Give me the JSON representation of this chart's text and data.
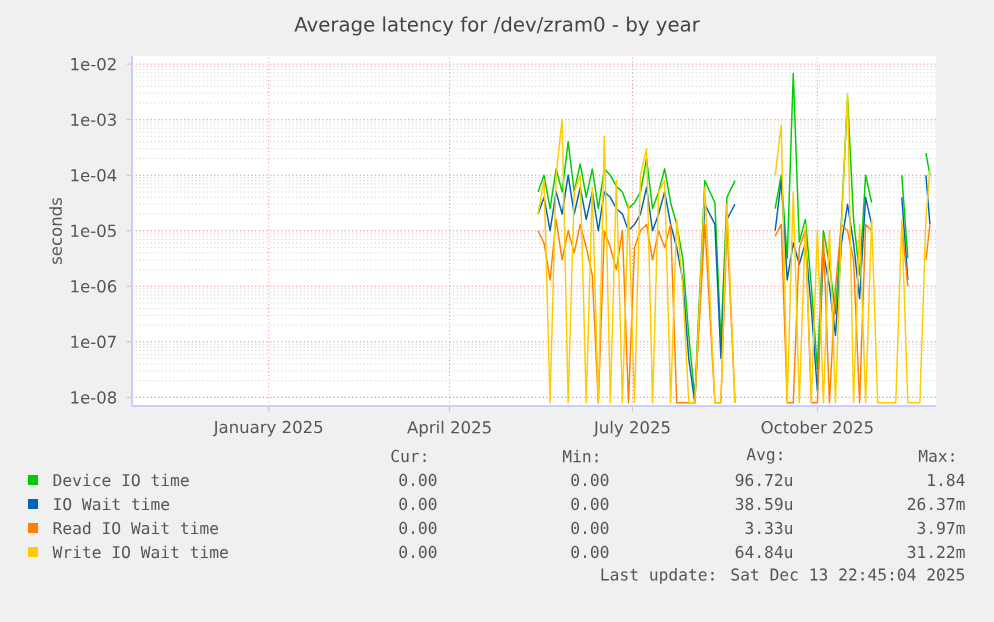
{
  "chart_data": {
    "type": "line",
    "title": "Average latency for /dev/zram0 - by year",
    "ylabel": "seconds",
    "log": true,
    "grid": true,
    "legend": "bottom",
    "xlim": [
      "2024-11-09",
      "2025-12-14"
    ],
    "ylim": [
      7e-09,
      0.014
    ],
    "xticks": [
      {
        "value": "2025-01-16",
        "label": "January 2025"
      },
      {
        "value": "2025-04-16",
        "label": "April 2025"
      },
      {
        "value": "2025-07-16",
        "label": "July 2025"
      },
      {
        "value": "2025-10-16",
        "label": "October 2025"
      }
    ],
    "yticks": [
      {
        "value": 1e-08,
        "label": "1e-08"
      },
      {
        "value": 1e-07,
        "label": "1e-07"
      },
      {
        "value": 1e-06,
        "label": "1e-06"
      },
      {
        "value": 1e-05,
        "label": "1e-05"
      },
      {
        "value": 0.0001,
        "label": "1e-04"
      },
      {
        "value": 0.001,
        "label": "1e-03"
      },
      {
        "value": 0.01,
        "label": "1e-02"
      }
    ],
    "x": [
      "2025-05-30",
      "2025-06-02",
      "2025-06-05",
      "2025-06-08",
      "2025-06-11",
      "2025-06-14",
      "2025-06-17",
      "2025-06-20",
      "2025-06-23",
      "2025-06-26",
      "2025-06-29",
      "2025-07-02",
      "2025-07-05",
      "2025-07-08",
      "2025-07-11",
      "2025-07-14",
      "2025-07-17",
      "2025-07-20",
      "2025-07-23",
      "2025-07-26",
      "2025-07-29",
      "2025-08-01",
      "2025-08-04",
      "2025-08-07",
      "2025-08-10",
      "2025-08-13",
      "2025-08-16",
      "2025-08-21",
      "2025-08-26",
      "2025-08-29",
      "2025-09-01",
      "2025-09-05",
      "2025-09-10",
      "2025-09-15",
      "2025-09-20",
      "2025-09-25",
      "2025-09-28",
      "2025-10-01",
      "2025-10-04",
      "2025-10-07",
      "2025-10-10",
      "2025-10-13",
      "2025-10-16",
      "2025-10-19",
      "2025-10-22",
      "2025-10-25",
      "2025-10-28",
      "2025-10-31",
      "2025-11-03",
      "2025-11-06",
      "2025-11-09",
      "2025-11-12",
      "2025-11-15",
      "2025-11-18",
      "2025-11-21",
      "2025-11-24",
      "2025-11-27",
      "2025-11-30",
      "2025-12-03",
      "2025-12-06",
      "2025-12-09",
      "2025-12-11"
    ],
    "series": [
      {
        "name": "Device IO time",
        "color": "#00cc00",
        "values": [
          5e-05,
          0.0001,
          2.5e-05,
          0.00013,
          5e-05,
          0.0004,
          5e-05,
          0.00016,
          4e-05,
          0.00013,
          2.5e-05,
          0.00013,
          0.0001,
          6.3e-05,
          5e-05,
          2.5e-05,
          3.2e-05,
          5e-05,
          0.0002,
          2.5e-05,
          5e-05,
          0.00013,
          3.2e-05,
          1.3e-05,
          3.2e-06,
          1.3e-07,
          1e-08,
          8e-05,
          3.2e-05,
          1e-07,
          4e-05,
          8e-05,
          null,
          null,
          null,
          2.5e-05,
          0.0001,
          3.2e-06,
          0.0068,
          6.3e-06,
          1.6e-05,
          1e-06,
          3.2e-08,
          1e-05,
          2.5e-06,
          3.2e-07,
          1.6e-05,
          0.0025,
          1.6e-05,
          1.6e-06,
          0.0001,
          3.2e-05,
          null,
          null,
          null,
          null,
          0.0001,
          3.2e-06,
          null,
          null,
          0.00025,
          0.0001
        ]
      },
      {
        "name": "IO Wait time",
        "color": "#0066b3",
        "values": [
          2e-05,
          4e-05,
          1e-05,
          5e-05,
          2e-05,
          0.0001,
          2e-05,
          6e-05,
          1.6e-05,
          5e-05,
          1e-05,
          5e-05,
          4e-05,
          2.5e-05,
          2e-05,
          1e-05,
          1.3e-05,
          2e-05,
          6e-05,
          1e-05,
          2e-05,
          5e-05,
          1.3e-05,
          5e-06,
          1.3e-06,
          5e-08,
          8e-09,
          3e-05,
          1.3e-05,
          5e-08,
          1.6e-05,
          3e-05,
          null,
          null,
          null,
          1e-05,
          8e-05,
          1.3e-06,
          6e-06,
          2.5e-06,
          6e-06,
          4e-07,
          1.3e-08,
          4e-06,
          1e-06,
          1.3e-07,
          6e-06,
          3e-05,
          6e-06,
          6e-07,
          4e-05,
          1.3e-05,
          null,
          null,
          null,
          null,
          4e-05,
          1.3e-06,
          null,
          null,
          0.0001,
          1.3e-05
        ]
      },
      {
        "name": "Read IO Wait time",
        "color": "#ff8000",
        "values": [
          1e-05,
          6e-06,
          1.3e-06,
          1.6e-05,
          3e-06,
          1e-05,
          4e-06,
          1.3e-05,
          5e-06,
          1.6e-06,
          8e-09,
          1e-05,
          5e-06,
          2e-06,
          1e-05,
          8e-09,
          5e-06,
          1e-05,
          1.3e-05,
          3e-06,
          1e-05,
          5e-06,
          1.3e-05,
          8e-09,
          8e-09,
          8e-09,
          8e-09,
          1.3e-05,
          8e-09,
          8e-09,
          1.3e-05,
          8e-09,
          null,
          null,
          null,
          8e-06,
          1.3e-05,
          8e-09,
          8e-09,
          5e-06,
          1e-05,
          8e-09,
          8e-09,
          8e-06,
          8e-09,
          1e-06,
          1.3e-05,
          1e-05,
          3e-06,
          8e-09,
          1.3e-05,
          1e-05,
          null,
          null,
          null,
          null,
          1.3e-05,
          1e-06,
          null,
          null,
          3e-06,
          1.3e-05
        ]
      },
      {
        "name": "Write IO Wait time",
        "color": "#ffcc00",
        "values": [
          2e-05,
          8e-05,
          8e-09,
          0.0001,
          0.001,
          8e-09,
          5e-05,
          0.0001,
          8e-09,
          6e-05,
          8e-09,
          0.0005,
          8e-09,
          8e-05,
          8e-09,
          3e-05,
          8e-09,
          0.0001,
          0.0003,
          8e-09,
          5e-05,
          8e-05,
          8e-09,
          1.6e-05,
          1e-06,
          8e-09,
          8e-09,
          6e-05,
          8e-09,
          8e-09,
          3e-05,
          8e-09,
          null,
          null,
          null,
          0.0001,
          0.0008,
          8e-09,
          5e-05,
          8e-09,
          1.3e-05,
          8e-09,
          1e-05,
          8e-09,
          1e-05,
          8e-09,
          1.3e-05,
          0.003,
          8e-09,
          1.3e-05,
          8e-09,
          1.6e-05,
          8e-09,
          8e-09,
          8e-09,
          8e-09,
          1.6e-05,
          8e-09,
          8e-09,
          8e-09,
          1.6e-05,
          0.00013
        ]
      }
    ],
    "annotations": [
      "Cur:",
      "Min:",
      "Avg:",
      "Max:",
      "0.00",
      "0.00",
      "96.72u",
      "1.84",
      "0.00",
      "0.00",
      "38.59u",
      "26.37m",
      "0.00",
      "0.00",
      "3.33u",
      "3.97m",
      "0.00",
      "0.00",
      "64.84u",
      "31.22m",
      "Last update: Sat Dec 13 22:45:04 2025"
    ]
  }
}
